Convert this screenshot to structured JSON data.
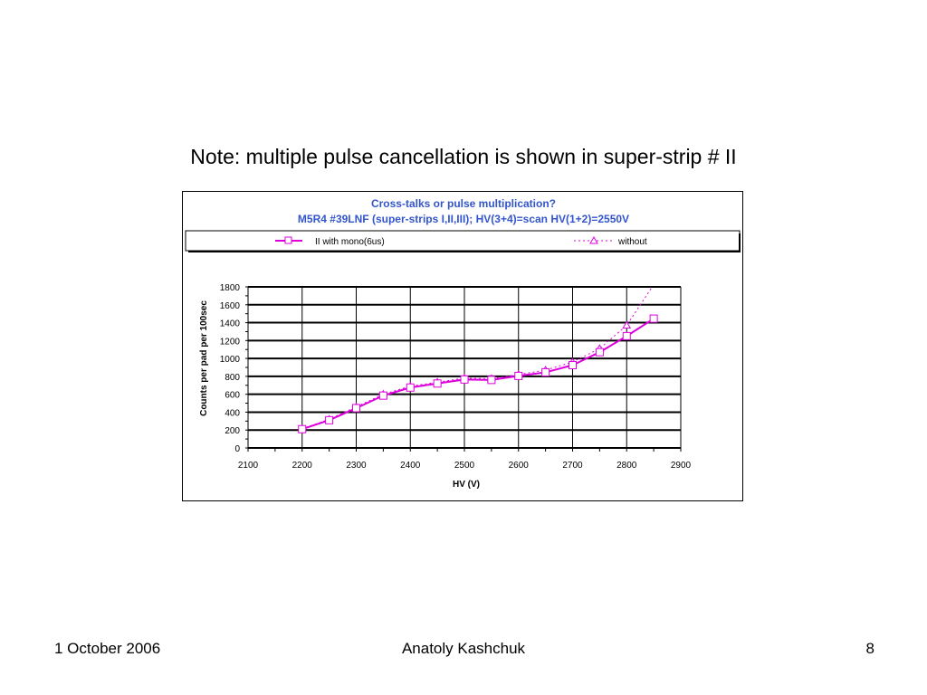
{
  "slide": {
    "title": "Note: multiple pulse cancellation is shown in super-strip # II",
    "footer_date": "1 October 2006",
    "footer_author": "Anatoly Kashchuk",
    "page_number": "8"
  },
  "chart_data": {
    "type": "line",
    "title": "Cross-talks or pulse multiplication?",
    "subtitle": "M5R4 #39LNF (super-strips I,II,III); HV(3+4)=scan HV(1+2)=2550V",
    "xlabel": "HV (V)",
    "ylabel": "Counts  per pad per 100sec",
    "xlim": [
      2100,
      2900
    ],
    "ylim": [
      0,
      1800
    ],
    "xticks": [
      "2100",
      "2200",
      "2300",
      "2400",
      "2500",
      "2600",
      "2700",
      "2800",
      "2900"
    ],
    "yticks": [
      "0",
      "200",
      "400",
      "600",
      "800",
      "1000",
      "1200",
      "1400",
      "1600",
      "1800"
    ],
    "grid": true,
    "legend_position": "top",
    "series": [
      {
        "name": "II with mono(6us)",
        "style": "solid line, square markers",
        "color": "#dd00dd",
        "x": [
          2200,
          2250,
          2300,
          2350,
          2400,
          2450,
          2500,
          2550,
          2600,
          2650,
          2700,
          2750,
          2800,
          2850
        ],
        "y": [
          210,
          310,
          445,
          585,
          675,
          720,
          765,
          760,
          805,
          845,
          925,
          1070,
          1250,
          1445
        ]
      },
      {
        "name": "without",
        "style": "dotted line, triangle markers",
        "color": "#dd00dd",
        "x": [
          2200,
          2250,
          2300,
          2350,
          2400,
          2450,
          2500,
          2550,
          2600,
          2650,
          2700,
          2750,
          2800,
          2845
        ],
        "y": [
          215,
          320,
          460,
          600,
          690,
          735,
          780,
          775,
          820,
          870,
          960,
          1110,
          1370,
          1780
        ]
      }
    ],
    "colors": {
      "title": "#3355cc",
      "grid": "#000000",
      "tick_minor": "#000000"
    }
  }
}
